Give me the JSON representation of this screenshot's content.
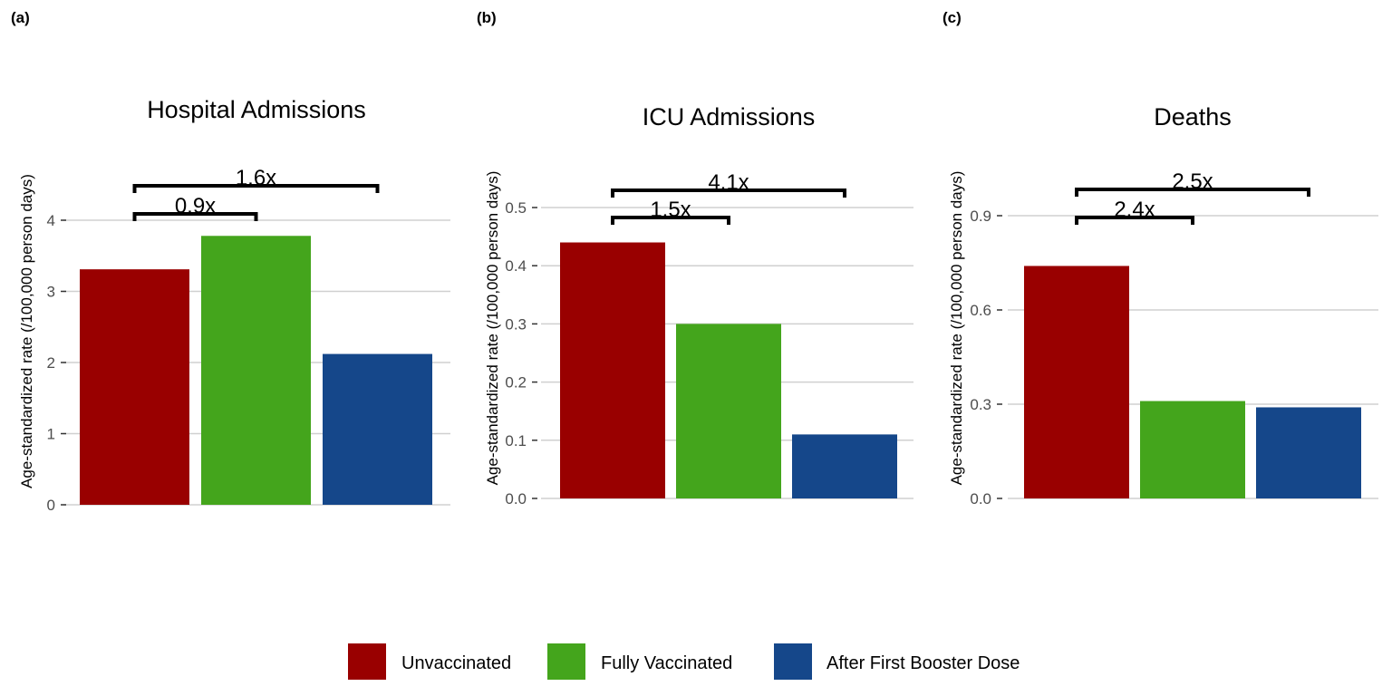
{
  "chart_data": [
    {
      "type": "bar",
      "panel_label": "(a)",
      "title": "Hospital Admissions",
      "ylabel": "Age-standardized rate (/100,000 person days)",
      "categories": [
        "Unvaccinated",
        "Fully Vaccinated",
        "After First Booster Dose"
      ],
      "values": [
        3.31,
        3.78,
        2.12
      ],
      "yticks": [
        "0",
        "1",
        "2",
        "3",
        "4"
      ],
      "ytick_values": [
        0,
        1,
        2,
        3,
        4
      ],
      "grid": true,
      "annotations": [
        {
          "label": "0.9x",
          "from": "Unvaccinated",
          "to": "Fully Vaccinated"
        },
        {
          "label": "1.6x",
          "from": "Unvaccinated",
          "to": "After First Booster Dose"
        }
      ]
    },
    {
      "type": "bar",
      "panel_label": "(b)",
      "title": "ICU Admissions",
      "ylabel": "Age-standardized rate (/100,000 person days)",
      "categories": [
        "Unvaccinated",
        "Fully Vaccinated",
        "After First Booster Dose"
      ],
      "values": [
        0.44,
        0.3,
        0.11
      ],
      "yticks": [
        "0.0",
        "0.1",
        "0.2",
        "0.3",
        "0.4",
        "0.5"
      ],
      "ytick_values": [
        0,
        0.1,
        0.2,
        0.3,
        0.4,
        0.5
      ],
      "grid": true,
      "annotations": [
        {
          "label": "1.5x",
          "from": "Unvaccinated",
          "to": "Fully Vaccinated"
        },
        {
          "label": "4.1x",
          "from": "Unvaccinated",
          "to": "After First Booster Dose"
        }
      ]
    },
    {
      "type": "bar",
      "panel_label": "(c)",
      "title": "Deaths",
      "ylabel": "Age-standardized rate (/100,000 person days)",
      "categories": [
        "Unvaccinated",
        "Fully Vaccinated",
        "After First Booster Dose"
      ],
      "values": [
        0.74,
        0.31,
        0.29
      ],
      "yticks": [
        "0.0",
        "0.3",
        "0.6",
        "0.9"
      ],
      "ytick_values": [
        0,
        0.3,
        0.6,
        0.9
      ],
      "grid": true,
      "annotations": [
        {
          "label": "2.4x",
          "from": "Unvaccinated",
          "to": "Fully Vaccinated"
        },
        {
          "label": "2.5x",
          "from": "Unvaccinated",
          "to": "After First Booster Dose"
        }
      ]
    }
  ],
  "legend": {
    "position": "bottom",
    "items": [
      {
        "label": "Unvaccinated",
        "color": "#990000"
      },
      {
        "label": "Fully Vaccinated",
        "color": "#44A51C"
      },
      {
        "label": "After First Booster Dose",
        "color": "#15478A"
      }
    ]
  }
}
